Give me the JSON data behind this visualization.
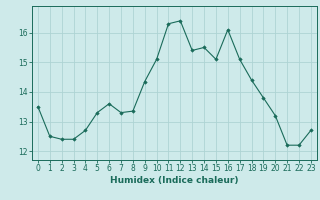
{
  "x": [
    0,
    1,
    2,
    3,
    4,
    5,
    6,
    7,
    8,
    9,
    10,
    11,
    12,
    13,
    14,
    15,
    16,
    17,
    18,
    19,
    20,
    21,
    22,
    23
  ],
  "y": [
    13.5,
    12.5,
    12.4,
    12.4,
    12.7,
    13.3,
    13.6,
    13.3,
    13.35,
    14.35,
    15.1,
    16.3,
    16.4,
    15.4,
    15.5,
    15.1,
    16.1,
    15.1,
    14.4,
    13.8,
    13.2,
    12.2,
    12.2,
    12.7
  ],
  "line_color": "#1a6b5a",
  "marker_color": "#1a6b5a",
  "bg_color": "#ceeaea",
  "grid_color": "#aed4d4",
  "axis_color": "#1a6b5a",
  "xlabel": "Humidex (Indice chaleur)",
  "xlim": [
    -0.5,
    23.5
  ],
  "ylim": [
    11.7,
    16.9
  ],
  "yticks": [
    12,
    13,
    14,
    15,
    16
  ],
  "xtick_labels": [
    "0",
    "1",
    "2",
    "3",
    "4",
    "5",
    "6",
    "7",
    "8",
    "9",
    "10",
    "11",
    "12",
    "13",
    "14",
    "15",
    "16",
    "17",
    "18",
    "19",
    "20",
    "21",
    "22",
    "23"
  ],
  "label_fontsize": 6.5,
  "tick_fontsize": 5.5
}
